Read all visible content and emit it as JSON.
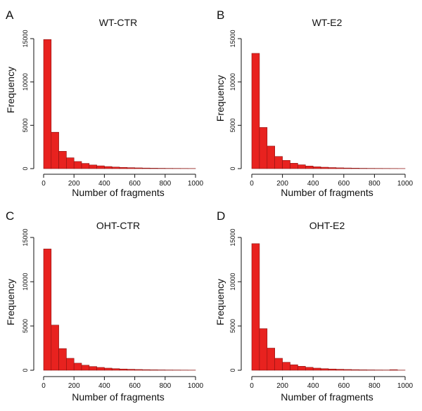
{
  "figure": {
    "background": "#ffffff",
    "bar_fill": "#e8221f",
    "bar_stroke": "#8a1210",
    "axis_color": "#111111"
  },
  "chart_data": [
    {
      "panel": "A",
      "type": "bar",
      "title": "WT-CTR",
      "xlabel": "Number of fragments",
      "ylabel": "Frequency",
      "bin_width": 50,
      "bin_starts": [
        0,
        50,
        100,
        150,
        200,
        250,
        300,
        350,
        400,
        450,
        500,
        550,
        600,
        650,
        700,
        750,
        800,
        850,
        900,
        950
      ],
      "values": [
        14900,
        4200,
        2000,
        1250,
        820,
        600,
        420,
        320,
        240,
        180,
        140,
        110,
        85,
        65,
        50,
        40,
        30,
        25,
        20,
        15
      ],
      "xlim": [
        0,
        1000
      ],
      "ylim": [
        0,
        15000
      ],
      "xticks": [
        0,
        200,
        400,
        600,
        800,
        1000
      ],
      "yticks": [
        0,
        5000,
        10000,
        15000
      ]
    },
    {
      "panel": "B",
      "type": "bar",
      "title": "WT-E2",
      "xlabel": "Number of fragments",
      "ylabel": "Frequency",
      "bin_width": 50,
      "bin_starts": [
        0,
        50,
        100,
        150,
        200,
        250,
        300,
        350,
        400,
        450,
        500,
        550,
        600,
        650,
        700,
        750,
        800,
        850,
        900,
        950
      ],
      "values": [
        13300,
        4750,
        2600,
        1400,
        950,
        620,
        440,
        300,
        210,
        160,
        120,
        90,
        70,
        55,
        40,
        30,
        25,
        20,
        15,
        10
      ],
      "xlim": [
        0,
        1000
      ],
      "ylim": [
        0,
        15000
      ],
      "xticks": [
        0,
        200,
        400,
        600,
        800,
        1000
      ],
      "yticks": [
        0,
        5000,
        10000,
        15000
      ]
    },
    {
      "panel": "C",
      "type": "bar",
      "title": "OHT-CTR",
      "xlabel": "Number of fragments",
      "ylabel": "Frequency",
      "bin_width": 50,
      "bin_starts": [
        0,
        50,
        100,
        150,
        200,
        250,
        300,
        350,
        400,
        450,
        500,
        550,
        600,
        650,
        700,
        750,
        800,
        850,
        900,
        950
      ],
      "values": [
        13700,
        5100,
        2450,
        1350,
        800,
        570,
        420,
        320,
        240,
        180,
        140,
        110,
        85,
        65,
        50,
        40,
        30,
        25,
        20,
        15
      ],
      "xlim": [
        0,
        1000
      ],
      "ylim": [
        0,
        15000
      ],
      "xticks": [
        0,
        200,
        400,
        600,
        800,
        1000
      ],
      "yticks": [
        0,
        5000,
        10000,
        15000
      ]
    },
    {
      "panel": "D",
      "type": "bar",
      "title": "OHT-E2",
      "xlabel": "Number of fragments",
      "ylabel": "Frequency",
      "bin_width": 50,
      "bin_starts": [
        0,
        50,
        100,
        150,
        200,
        250,
        300,
        350,
        400,
        450,
        500,
        550,
        600,
        650,
        700,
        750,
        800,
        850,
        900,
        950
      ],
      "values": [
        14300,
        4700,
        2500,
        1350,
        900,
        620,
        450,
        330,
        240,
        180,
        140,
        110,
        85,
        65,
        50,
        40,
        30,
        25,
        60,
        15
      ],
      "xlim": [
        0,
        1000
      ],
      "ylim": [
        0,
        15000
      ],
      "xticks": [
        0,
        200,
        400,
        600,
        800,
        1000
      ],
      "yticks": [
        0,
        5000,
        10000,
        15000
      ]
    }
  ]
}
